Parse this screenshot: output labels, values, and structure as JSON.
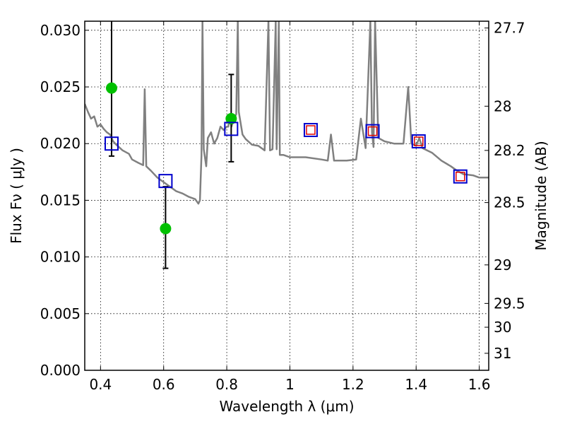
{
  "chart_data": {
    "type": "scatter",
    "title": "",
    "xlabel": "Wavelength  λ (μm)",
    "ylabel": "Flux  Fν  ( μJy )",
    "y2label": "Magnitude (AB)",
    "xlim": [
      0.35,
      1.63
    ],
    "ylim": [
      0.0,
      0.0308
    ],
    "grid": true,
    "grid_style": "dotted",
    "x_ticks": [
      0.4,
      0.6,
      0.8,
      1.0,
      1.2,
      1.4,
      1.6
    ],
    "x_tick_labels": [
      "0.4",
      "0.6",
      "0.8",
      "1",
      "1.2",
      "1.4",
      "1.6"
    ],
    "y_ticks": [
      0.0,
      0.005,
      0.01,
      0.015,
      0.02,
      0.025,
      0.03
    ],
    "y_tick_labels": [
      "0.000",
      "0.005",
      "0.010",
      "0.015",
      "0.020",
      "0.025",
      "0.030"
    ],
    "y2_ticks": [
      {
        "label": "27.7",
        "flux": 0.0302
      },
      {
        "label": "28",
        "flux": 0.0233
      },
      {
        "label": "28.2",
        "flux": 0.0194
      },
      {
        "label": "28.5",
        "flux": 0.0148
      },
      {
        "label": "29",
        "flux": 0.0093
      },
      {
        "label": "29.5",
        "flux": 0.0059
      },
      {
        "label": "30",
        "flux": 0.0038
      },
      {
        "label": "31",
        "flux": 0.0015
      }
    ],
    "colors": {
      "spectrum": "#808080",
      "observed": "#00c000",
      "errorbar": "#000000",
      "model_photometry": "#0000cc",
      "model_inner": "#e00000"
    },
    "series": [
      {
        "type": "line",
        "points": [
          [
            0.35,
            0.0235
          ],
          [
            0.36,
            0.0228
          ],
          [
            0.37,
            0.0222
          ],
          [
            0.38,
            0.0224
          ],
          [
            0.39,
            0.0215
          ],
          [
            0.4,
            0.0217
          ],
          [
            0.41,
            0.0213
          ],
          [
            0.42,
            0.021
          ],
          [
            0.43,
            0.0208
          ],
          [
            0.44,
            0.0202
          ],
          [
            0.45,
            0.0199
          ],
          [
            0.47,
            0.0194
          ],
          [
            0.49,
            0.0191
          ],
          [
            0.5,
            0.0186
          ],
          [
            0.52,
            0.0183
          ],
          [
            0.535,
            0.0181
          ],
          [
            0.54,
            0.0248
          ],
          [
            0.545,
            0.018
          ],
          [
            0.56,
            0.0176
          ],
          [
            0.58,
            0.017
          ],
          [
            0.6,
            0.0166
          ],
          [
            0.62,
            0.0162
          ],
          [
            0.64,
            0.0158
          ],
          [
            0.66,
            0.0156
          ],
          [
            0.68,
            0.0153
          ],
          [
            0.7,
            0.0151
          ],
          [
            0.71,
            0.0147
          ],
          [
            0.715,
            0.015
          ],
          [
            0.72,
            0.019
          ],
          [
            0.723,
            0.0308
          ],
          [
            0.727,
            0.0195
          ],
          [
            0.735,
            0.018
          ],
          [
            0.74,
            0.0205
          ],
          [
            0.75,
            0.021
          ],
          [
            0.76,
            0.02
          ],
          [
            0.77,
            0.0205
          ],
          [
            0.78,
            0.0215
          ],
          [
            0.79,
            0.0212
          ],
          [
            0.8,
            0.0215
          ],
          [
            0.805,
            0.0215
          ],
          [
            0.81,
            0.0225
          ],
          [
            0.815,
            0.0215
          ],
          [
            0.82,
            0.022
          ],
          [
            0.83,
            0.0226
          ],
          [
            0.835,
            0.0308
          ],
          [
            0.838,
            0.0228
          ],
          [
            0.85,
            0.0208
          ],
          [
            0.86,
            0.0204
          ],
          [
            0.88,
            0.0199
          ],
          [
            0.9,
            0.0198
          ],
          [
            0.92,
            0.0194
          ],
          [
            0.932,
            0.0308
          ],
          [
            0.937,
            0.0194
          ],
          [
            0.945,
            0.0195
          ],
          [
            0.955,
            0.0308
          ],
          [
            0.958,
            0.0195
          ],
          [
            0.965,
            0.0308
          ],
          [
            0.968,
            0.019
          ],
          [
            0.98,
            0.019
          ],
          [
            1.0,
            0.0188
          ],
          [
            1.05,
            0.0188
          ],
          [
            1.1,
            0.0186
          ],
          [
            1.12,
            0.0185
          ],
          [
            1.13,
            0.0208
          ],
          [
            1.14,
            0.0185
          ],
          [
            1.18,
            0.0185
          ],
          [
            1.21,
            0.0186
          ],
          [
            1.225,
            0.0222
          ],
          [
            1.24,
            0.0196
          ],
          [
            1.255,
            0.0308
          ],
          [
            1.26,
            0.021
          ],
          [
            1.265,
            0.0197
          ],
          [
            1.27,
            0.0308
          ],
          [
            1.28,
            0.0205
          ],
          [
            1.3,
            0.0202
          ],
          [
            1.33,
            0.02
          ],
          [
            1.36,
            0.02
          ],
          [
            1.375,
            0.025
          ],
          [
            1.385,
            0.02
          ],
          [
            1.4,
            0.0198
          ],
          [
            1.41,
            0.0205
          ],
          [
            1.42,
            0.0196
          ],
          [
            1.45,
            0.0192
          ],
          [
            1.48,
            0.0185
          ],
          [
            1.51,
            0.018
          ],
          [
            1.53,
            0.0176
          ],
          [
            1.55,
            0.0173
          ],
          [
            1.58,
            0.0172
          ],
          [
            1.6,
            0.017
          ],
          [
            1.63,
            0.017
          ]
        ]
      },
      {
        "type": "errorbar",
        "points": [
          {
            "x": 0.435,
            "y": 0.0249,
            "low": 0.0189,
            "high": 0.0308
          },
          {
            "x": 0.606,
            "y": 0.0125,
            "low": 0.009,
            "high": 0.0162
          },
          {
            "x": 0.814,
            "y": 0.0222,
            "low": 0.0184,
            "high": 0.0261
          }
        ]
      },
      {
        "type": "scatter",
        "marker": "square",
        "points": [
          {
            "x": 0.435,
            "y": 0.02
          },
          {
            "x": 0.606,
            "y": 0.0167
          },
          {
            "x": 0.814,
            "y": 0.0213
          },
          {
            "x": 1.066,
            "y": 0.0212
          },
          {
            "x": 1.262,
            "y": 0.0211
          },
          {
            "x": 1.408,
            "y": 0.0202
          },
          {
            "x": 1.54,
            "y": 0.0171
          }
        ]
      }
    ]
  }
}
